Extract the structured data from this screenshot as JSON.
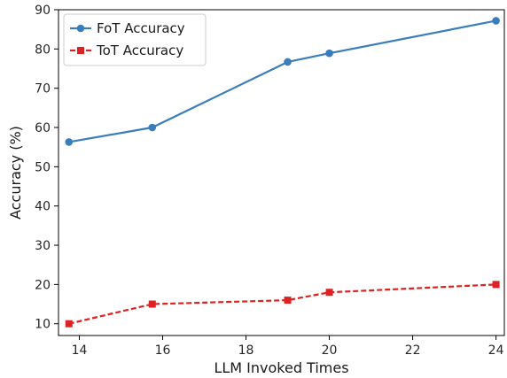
{
  "chart_data": {
    "type": "line",
    "xlabel": "LLM Invoked Times",
    "ylabel": "Accuracy (%)",
    "xlim": [
      13.5,
      24.2
    ],
    "ylim": [
      7,
      90
    ],
    "xticks": [
      14,
      16,
      18,
      20,
      22,
      24
    ],
    "yticks": [
      10,
      20,
      30,
      40,
      50,
      60,
      70,
      80,
      90
    ],
    "grid": false,
    "legend_position": "top-left",
    "series": [
      {
        "name": "FoT Accuracy",
        "color": "#3a7dbb",
        "marker": "circle",
        "linestyle": "solid",
        "points": [
          [
            13.75,
            56.3
          ],
          [
            15.75,
            60.0
          ],
          [
            19.0,
            76.7
          ],
          [
            20.0,
            78.9
          ],
          [
            24.0,
            87.2
          ]
        ]
      },
      {
        "name": "ToT Accuracy",
        "color": "#dc2222",
        "marker": "square",
        "linestyle": "dashed",
        "points": [
          [
            13.75,
            10.0
          ],
          [
            15.75,
            15.0
          ],
          [
            19.0,
            16.0
          ],
          [
            20.0,
            18.0
          ],
          [
            24.0,
            20.0
          ]
        ]
      }
    ]
  }
}
